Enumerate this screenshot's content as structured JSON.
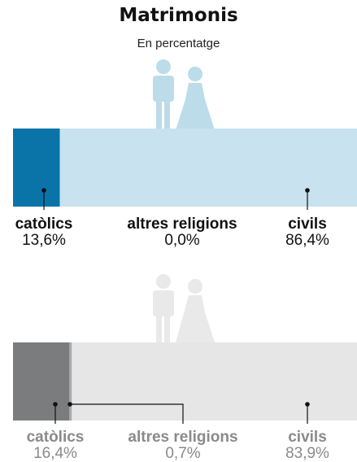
{
  "title": "Matrimonis",
  "subtitle": "En percentatge",
  "colors": {
    "catolics_1": "#0a74a8",
    "altres_1": "#6aa8c8",
    "civils_1": "#c8e2ef",
    "figure_1": "#bcdcea",
    "catolics_2": "#7b7c7e",
    "altres_2": "#a9aaac",
    "civils_2": "#e6e6e6",
    "figure_2": "#e9e9e9",
    "label_2": "#8a8a8a"
  },
  "chart_data": [
    {
      "type": "bar",
      "orientation": "horizontal-stacked",
      "title": "Matrimonis",
      "subtitle": "En percentatge",
      "categories": [
        "catòlics",
        "altres religions",
        "civils"
      ],
      "values": [
        13.6,
        0.0,
        86.4
      ],
      "value_labels": [
        "13,6%",
        "0,0%",
        "86,4%"
      ],
      "xlim": [
        0,
        100
      ]
    },
    {
      "type": "bar",
      "orientation": "horizontal-stacked",
      "categories": [
        "catòlics",
        "altres religions",
        "civils"
      ],
      "values": [
        16.4,
        0.7,
        83.9
      ],
      "value_labels": [
        "16,4%",
        "0,7%",
        "83,9%"
      ],
      "xlim": [
        0,
        100
      ]
    }
  ]
}
